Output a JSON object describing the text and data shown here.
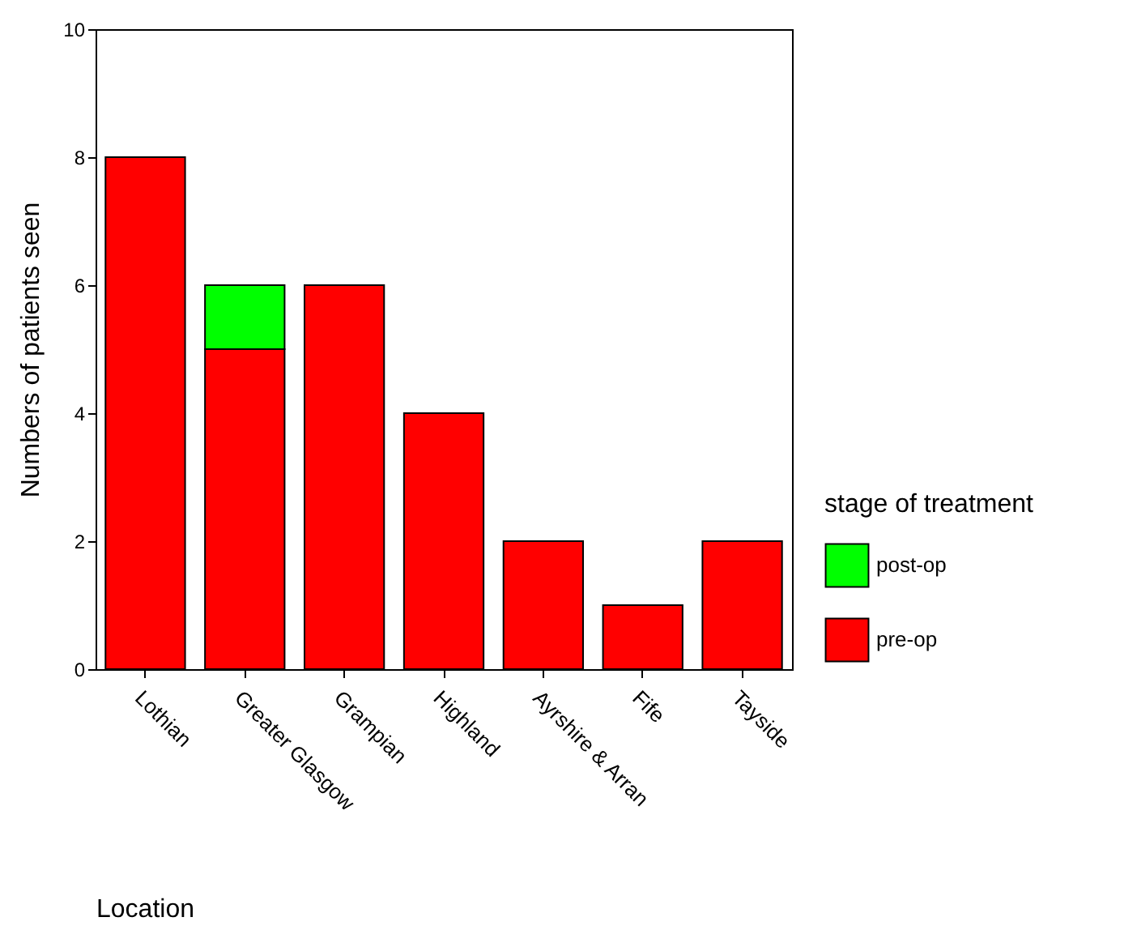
{
  "chart_data": {
    "type": "bar",
    "stacked": true,
    "xlabel": "Location",
    "ylabel": "Numbers of patients seen",
    "legend_title": "stage of treatment",
    "legend": "right",
    "grid": false,
    "categories": [
      "Lothian",
      "Greater Glasgow",
      "Grampian",
      "Highland",
      "Ayrshire & Arran",
      "Fife",
      "Tayside"
    ],
    "ylim": [
      0,
      10
    ],
    "yticks": [
      0,
      2,
      4,
      6,
      8,
      10
    ],
    "series": [
      {
        "name": "pre-op",
        "color": "#ff0000",
        "values": [
          8,
          5,
          6,
          4,
          2,
          1,
          2
        ]
      },
      {
        "name": "post-op",
        "color": "#00ff00",
        "values": [
          null,
          1,
          null,
          null,
          null,
          null,
          null
        ]
      }
    ]
  }
}
